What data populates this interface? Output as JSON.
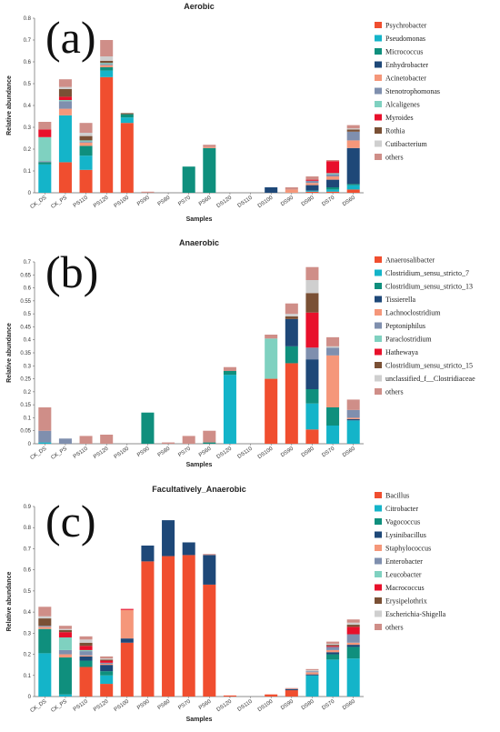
{
  "chart_data": [
    {
      "type": "bar",
      "stacked": true,
      "panel_label": "(a)",
      "title": "Aerobic",
      "xlabel": "Samples",
      "ylabel": "Relative abundance",
      "ylim": [
        0,
        0.8
      ],
      "yticks": [
        "0",
        "0.1",
        "0.2",
        "0.3",
        "0.4",
        "0.5",
        "0.6",
        "0.7",
        "0.8"
      ],
      "ytick_values": [
        0,
        0.1,
        0.2,
        0.3,
        0.4,
        0.5,
        0.6,
        0.7,
        0.8
      ],
      "legend_position": "right",
      "categories": [
        "CK_DS",
        "CK_PS",
        "PS110",
        "PS120",
        "PS100",
        "PS90",
        "PS80",
        "PS70",
        "PS60",
        "DS120",
        "DS110",
        "DS100",
        "DS90",
        "DS80",
        "DS70",
        "DS60"
      ],
      "series": [
        {
          "name": "Psychrobacter",
          "color": "#f04e2f",
          "values": [
            0,
            0.14,
            0.105,
            0.53,
            0.32,
            0,
            0,
            0,
            0,
            0,
            0,
            0,
            0,
            0.005,
            0.005,
            0.015
          ]
        },
        {
          "name": "Pseudomonas",
          "color": "#14b4c9",
          "values": [
            0.13,
            0.215,
            0.065,
            0.03,
            0.025,
            0,
            0,
            0,
            0,
            0,
            0,
            0,
            0,
            0.005,
            0.01,
            0.02
          ]
        },
        {
          "name": "Micrococcus",
          "color": "#0f8f7d",
          "values": [
            0.01,
            0,
            0.045,
            0.015,
            0.015,
            0,
            0,
            0.12,
            0.205,
            0,
            0,
            0,
            0,
            0,
            0.01,
            0.005
          ]
        },
        {
          "name": "Enhydrobacter",
          "color": "#1e4878",
          "values": [
            0,
            0,
            0,
            0,
            0,
            0,
            0,
            0,
            0,
            0,
            0,
            0.025,
            0,
            0.025,
            0.035,
            0.165
          ]
        },
        {
          "name": "Acinetobacter",
          "color": "#f5977a",
          "values": [
            0,
            0.03,
            0.015,
            0.01,
            0,
            0,
            0,
            0,
            0.005,
            0,
            0,
            0,
            0.015,
            0.01,
            0.015,
            0.035
          ]
        },
        {
          "name": "Stenotrophomonas",
          "color": "#7f8fae",
          "values": [
            0.005,
            0.035,
            0.005,
            0.005,
            0,
            0,
            0,
            0,
            0,
            0,
            0,
            0,
            0,
            0.01,
            0.01,
            0.04
          ]
        },
        {
          "name": "Alcaligenes",
          "color": "#7fd1c0",
          "values": [
            0.11,
            0.005,
            0.005,
            0.005,
            0,
            0,
            0,
            0,
            0,
            0,
            0,
            0,
            0,
            0,
            0.005,
            0
          ]
        },
        {
          "name": "Myroides",
          "color": "#e8102b",
          "values": [
            0.035,
            0.015,
            0,
            0,
            0,
            0,
            0,
            0,
            0,
            0,
            0,
            0,
            0,
            0.005,
            0.055,
            0
          ]
        },
        {
          "name": "Rothia",
          "color": "#7a5035",
          "values": [
            0,
            0.035,
            0.02,
            0.01,
            0.005,
            0,
            0,
            0,
            0,
            0,
            0,
            0,
            0,
            0,
            0,
            0.01
          ]
        },
        {
          "name": "Cutibacterium",
          "color": "#cfcfcf",
          "values": [
            0,
            0.01,
            0.015,
            0.02,
            0,
            0,
            0,
            0,
            0,
            0,
            0,
            0,
            0,
            0,
            0,
            0.005
          ]
        },
        {
          "name": "others",
          "color": "#cf8e88",
          "values": [
            0.035,
            0.035,
            0.045,
            0.075,
            0,
            0.005,
            0,
            0,
            0.01,
            0,
            0,
            0,
            0.01,
            0.015,
            0.005,
            0.015
          ]
        }
      ]
    },
    {
      "type": "bar",
      "stacked": true,
      "panel_label": "(b)",
      "title": "Anaerobic",
      "xlabel": "Samples",
      "ylabel": "Relative abundance",
      "ylim": [
        0,
        0.7
      ],
      "yticks": [
        "0",
        "0.05",
        "0.1",
        "0.15",
        "0.2",
        "0.25",
        "0.3",
        "0.35",
        "0.4",
        "0.45",
        "0.5",
        "0.55",
        "0.6",
        "0.65",
        "0.7"
      ],
      "ytick_values": [
        0,
        0.05,
        0.1,
        0.15,
        0.2,
        0.25,
        0.3,
        0.35,
        0.4,
        0.45,
        0.5,
        0.55,
        0.6,
        0.65,
        0.7
      ],
      "legend_position": "right",
      "categories": [
        "CK_DS",
        "CK_PS",
        "PS110",
        "PS120",
        "PS100",
        "PS90",
        "PS80",
        "PS70",
        "PS60",
        "DS120",
        "DS110",
        "DS100",
        "DS90",
        "DS80",
        "DS70",
        "DS60"
      ],
      "series": [
        {
          "name": "Anaerosalibacter",
          "color": "#f04e2f",
          "values": [
            0,
            0,
            0,
            0,
            0,
            0,
            0,
            0,
            0,
            0,
            0,
            0.25,
            0.31,
            0.055,
            0,
            0
          ]
        },
        {
          "name": "Clostridium_sensu_stricto_7",
          "color": "#14b4c9",
          "values": [
            0.005,
            0,
            0,
            0,
            0,
            0,
            0,
            0,
            0,
            0.265,
            0,
            0,
            0,
            0.1,
            0.07,
            0.09
          ]
        },
        {
          "name": "Clostridium_sensu_stricto_13",
          "color": "#0f8f7d",
          "values": [
            0,
            0,
            0,
            0,
            0,
            0.12,
            0,
            0,
            0.005,
            0.015,
            0,
            0,
            0.065,
            0.055,
            0.07,
            0
          ]
        },
        {
          "name": "Tissierella",
          "color": "#1e4878",
          "values": [
            0,
            0,
            0,
            0,
            0,
            0,
            0,
            0,
            0,
            0,
            0,
            0,
            0.105,
            0.115,
            0,
            0.005
          ]
        },
        {
          "name": "Lachnoclostridium",
          "color": "#f5977a",
          "values": [
            0,
            0,
            0,
            0,
            0,
            0,
            0,
            0,
            0,
            0,
            0,
            0,
            0,
            0,
            0.2,
            0.005
          ]
        },
        {
          "name": "Peptoniphilus",
          "color": "#7f8fae",
          "values": [
            0.045,
            0.02,
            0,
            0,
            0,
            0,
            0,
            0,
            0,
            0,
            0,
            0,
            0,
            0.045,
            0.03,
            0.03
          ]
        },
        {
          "name": "Paraclostridium",
          "color": "#7fd1c0",
          "values": [
            0,
            0,
            0,
            0,
            0,
            0,
            0,
            0,
            0,
            0,
            0,
            0.155,
            0,
            0,
            0,
            0
          ]
        },
        {
          "name": "Hathewaya",
          "color": "#e8102b",
          "values": [
            0,
            0,
            0,
            0,
            0,
            0,
            0,
            0,
            0,
            0,
            0,
            0,
            0,
            0.135,
            0,
            0
          ]
        },
        {
          "name": "Clostridium_sensu_stricto_15",
          "color": "#7a5035",
          "values": [
            0,
            0,
            0,
            0,
            0,
            0,
            0,
            0,
            0,
            0,
            0,
            0,
            0.01,
            0.075,
            0,
            0
          ]
        },
        {
          "name": "unclassified_f__Clostridiaceae",
          "color": "#cfcfcf",
          "values": [
            0,
            0,
            0,
            0,
            0,
            0,
            0,
            0,
            0,
            0,
            0,
            0,
            0.01,
            0.05,
            0.005,
            0
          ]
        },
        {
          "name": "others",
          "color": "#cf8e88",
          "values": [
            0.09,
            0,
            0.03,
            0.035,
            0,
            0,
            0.005,
            0.03,
            0.045,
            0.015,
            0,
            0.015,
            0.04,
            0.05,
            0.035,
            0.04
          ]
        }
      ]
    },
    {
      "type": "bar",
      "stacked": true,
      "panel_label": "(c)",
      "title": "Facultatively_Anaerobic",
      "xlabel": "Samples",
      "ylabel": "Relative abundance",
      "ylim": [
        0,
        0.9
      ],
      "yticks": [
        "0",
        "0.1",
        "0.2",
        "0.3",
        "0.4",
        "0.5",
        "0.6",
        "0.7",
        "0.8",
        "0.9"
      ],
      "ytick_values": [
        0,
        0.1,
        0.2,
        0.3,
        0.4,
        0.5,
        0.6,
        0.7,
        0.8,
        0.9
      ],
      "legend_position": "right",
      "categories": [
        "CK_DS",
        "CK_PS",
        "PS110",
        "PS120",
        "PS100",
        "PS90",
        "PS80",
        "PS70",
        "PS60",
        "DS120",
        "DS110",
        "DS100",
        "DS90",
        "DS80",
        "DS70",
        "DS60"
      ],
      "series": [
        {
          "name": "Bacillus",
          "color": "#f04e2f",
          "values": [
            0,
            0,
            0.14,
            0.06,
            0.255,
            0.64,
            0.665,
            0.67,
            0.53,
            0.005,
            0,
            0.01,
            0.03,
            0,
            0,
            0
          ]
        },
        {
          "name": "Citrobacter",
          "color": "#14b4c9",
          "values": [
            0.205,
            0.01,
            0,
            0.04,
            0,
            0,
            0,
            0,
            0,
            0,
            0,
            0,
            0,
            0.1,
            0.175,
            0.18
          ]
        },
        {
          "name": "Vagococcus",
          "color": "#0f8f7d",
          "values": [
            0.115,
            0.175,
            0.03,
            0.02,
            0,
            0,
            0,
            0,
            0,
            0,
            0,
            0,
            0,
            0,
            0.025,
            0.055
          ]
        },
        {
          "name": "Lysinibacillus",
          "color": "#1e4878",
          "values": [
            0,
            0,
            0.02,
            0.03,
            0.02,
            0.075,
            0.17,
            0.06,
            0.14,
            0,
            0,
            0,
            0.005,
            0.005,
            0.01,
            0.01
          ]
        },
        {
          "name": "Staphylococcus",
          "color": "#f5977a",
          "values": [
            0.01,
            0.015,
            0.005,
            0.005,
            0.135,
            0,
            0,
            0,
            0,
            0,
            0,
            0,
            0,
            0.01,
            0.01,
            0.01
          ]
        },
        {
          "name": "Enterobacter",
          "color": "#7f8fae",
          "values": [
            0.005,
            0.02,
            0.02,
            0.005,
            0,
            0,
            0,
            0,
            0,
            0,
            0,
            0,
            0,
            0.005,
            0.015,
            0.04
          ]
        },
        {
          "name": "Leucobacter",
          "color": "#7fd1c0",
          "values": [
            0,
            0.06,
            0.005,
            0,
            0,
            0,
            0,
            0,
            0,
            0,
            0,
            0,
            0,
            0,
            0,
            0
          ]
        },
        {
          "name": "Macrococcus",
          "color": "#e8102b",
          "values": [
            0,
            0.025,
            0.02,
            0.01,
            0.005,
            0,
            0,
            0,
            0,
            0,
            0,
            0,
            0,
            0,
            0.005,
            0.035
          ]
        },
        {
          "name": "Erysipelothrix",
          "color": "#7a5035",
          "values": [
            0.035,
            0.01,
            0.015,
            0.005,
            0,
            0,
            0,
            0,
            0,
            0,
            0,
            0,
            0,
            0,
            0.005,
            0.01
          ]
        },
        {
          "name": "Escherichia-Shigella",
          "color": "#cfcfcf",
          "values": [
            0.01,
            0.005,
            0.015,
            0.005,
            0,
            0,
            0,
            0,
            0,
            0,
            0,
            0,
            0,
            0.005,
            0.005,
            0.01
          ]
        },
        {
          "name": "others",
          "color": "#cf8e88",
          "values": [
            0.045,
            0.015,
            0.015,
            0.01,
            0,
            0,
            0,
            0,
            0.005,
            0,
            0,
            0,
            0.005,
            0.005,
            0.01,
            0.015
          ]
        }
      ]
    }
  ]
}
